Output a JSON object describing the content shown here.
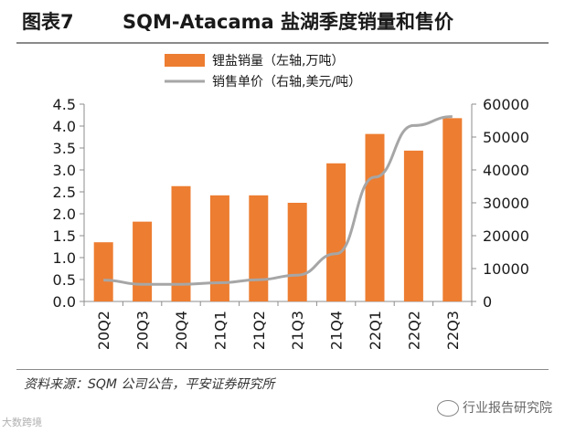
{
  "header": {
    "figure_label": "图表7",
    "title": "SQM-Atacama 盐湖季度销量和售价"
  },
  "chart_data": {
    "type": "bar",
    "categories": [
      "20Q2",
      "20Q3",
      "20Q4",
      "21Q1",
      "21Q2",
      "21Q3",
      "21Q4",
      "22Q1",
      "22Q2",
      "22Q3"
    ],
    "series": [
      {
        "name": "锂盐销量（左轴,万吨）",
        "kind": "bar",
        "axis": "left",
        "values": [
          1.35,
          1.82,
          2.63,
          2.42,
          2.42,
          2.25,
          3.15,
          3.82,
          3.44,
          4.18
        ]
      },
      {
        "name": "销售单价（右轴,美元/吨）",
        "kind": "line",
        "axis": "right",
        "values": [
          6500,
          5200,
          5200,
          5700,
          6600,
          8000,
          14500,
          37800,
          53500,
          56200
        ]
      }
    ],
    "ylim_left": [
      0,
      4.5
    ],
    "yticks_left": [
      "0.0",
      "0.5",
      "1.0",
      "1.5",
      "2.0",
      "2.5",
      "3.0",
      "3.5",
      "4.0",
      "4.5"
    ],
    "ylim_right": [
      0,
      60000
    ],
    "yticks_right": [
      "0",
      "10000",
      "20000",
      "30000",
      "40000",
      "50000",
      "60000"
    ],
    "grid": false,
    "legend_position": "top-center",
    "colors": {
      "bar": "#ED7D31",
      "line": "#A6A6A6",
      "axis": "#8C8C8C"
    }
  },
  "footer": {
    "source": "资料来源：SQM 公司公告，平安证券研究所"
  },
  "watermarks": {
    "right": "行业报告研究院",
    "left": "大数跨境"
  }
}
